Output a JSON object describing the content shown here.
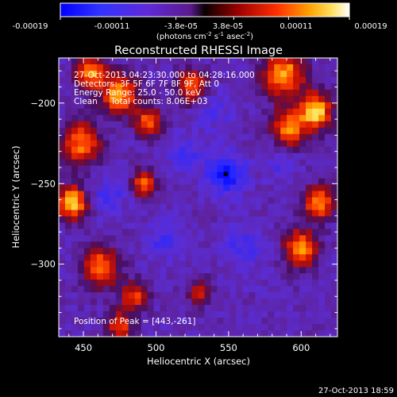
{
  "title": "Reconstructed RHESSI Image",
  "timestamp": "27-Oct-2013 18:59",
  "colorbar": {
    "ticks": [
      "-0.00019",
      "-0.00011",
      "-3.8e-05",
      "3.8e-05",
      "0.00011",
      "0.00019"
    ],
    "min": -0.00019,
    "max": 0.00019,
    "units_prefix": "(photons cm",
    "units_exp1": "-2",
    "units_mid": " s",
    "units_exp2": "-1",
    "units_mid2": " asec",
    "units_exp3": "-2",
    "units_suffix": ")"
  },
  "info": {
    "time_range": "27-Oct-2013 04:23:30.000 to 04:28:16.000",
    "detectors": "Detectors: 3F 5F 6F 7F 8F 9F, Att 0",
    "energy": "Energy Range: 25.0 - 50.0 keV",
    "clean": "Clean     Total counts: 8.06E+03",
    "peak": "Position of Peak = [443,-261]"
  },
  "chart_data": {
    "type": "heatmap",
    "title": "Reconstructed RHESSI Image",
    "xlabel": "Heliocentric X (arcsec)",
    "ylabel": "Heliocentric Y (arcsec)",
    "xlim": [
      433,
      625
    ],
    "ylim": [
      -345,
      -172
    ],
    "x_ticks": [
      450,
      500,
      550,
      600
    ],
    "y_ticks": [
      -200,
      -250,
      -300
    ],
    "peak_position": [
      443,
      -261
    ],
    "marker": [
      548,
      -244
    ],
    "hot_spots": [
      {
        "x": 442,
        "y": -262,
        "r": 10,
        "w": 1.0
      },
      {
        "x": 448,
        "y": -225,
        "r": 13,
        "w": 0.75
      },
      {
        "x": 455,
        "y": -182,
        "r": 10,
        "w": 0.8
      },
      {
        "x": 475,
        "y": -195,
        "r": 12,
        "w": 0.85
      },
      {
        "x": 495,
        "y": -212,
        "r": 9,
        "w": 0.7
      },
      {
        "x": 525,
        "y": -190,
        "r": 10,
        "w": 0.7
      },
      {
        "x": 588,
        "y": -182,
        "r": 14,
        "w": 0.85
      },
      {
        "x": 610,
        "y": -205,
        "r": 11,
        "w": 0.95
      },
      {
        "x": 592,
        "y": -215,
        "r": 11,
        "w": 0.8
      },
      {
        "x": 612,
        "y": -262,
        "r": 10,
        "w": 0.8
      },
      {
        "x": 600,
        "y": -290,
        "r": 11,
        "w": 0.85
      },
      {
        "x": 492,
        "y": -250,
        "r": 8,
        "w": 0.7
      },
      {
        "x": 462,
        "y": -302,
        "r": 12,
        "w": 0.8
      },
      {
        "x": 485,
        "y": -320,
        "r": 9,
        "w": 0.6
      },
      {
        "x": 475,
        "y": -338,
        "r": 9,
        "w": 0.6
      },
      {
        "x": 530,
        "y": -318,
        "r": 8,
        "w": 0.5
      }
    ],
    "cold_spots": [
      {
        "x": 548,
        "y": -244,
        "r": 13,
        "w": 1.0
      },
      {
        "x": 468,
        "y": -258,
        "r": 11,
        "w": 0.55
      },
      {
        "x": 520,
        "y": -232,
        "r": 12,
        "w": 0.5
      },
      {
        "x": 560,
        "y": -290,
        "r": 14,
        "w": 0.5
      },
      {
        "x": 505,
        "y": -285,
        "r": 12,
        "w": 0.45
      },
      {
        "x": 540,
        "y": -205,
        "r": 12,
        "w": 0.4
      },
      {
        "x": 585,
        "y": -240,
        "r": 9,
        "w": 0.4
      }
    ]
  },
  "colors": {
    "background": "#000000",
    "foreground": "#ffffff"
  }
}
